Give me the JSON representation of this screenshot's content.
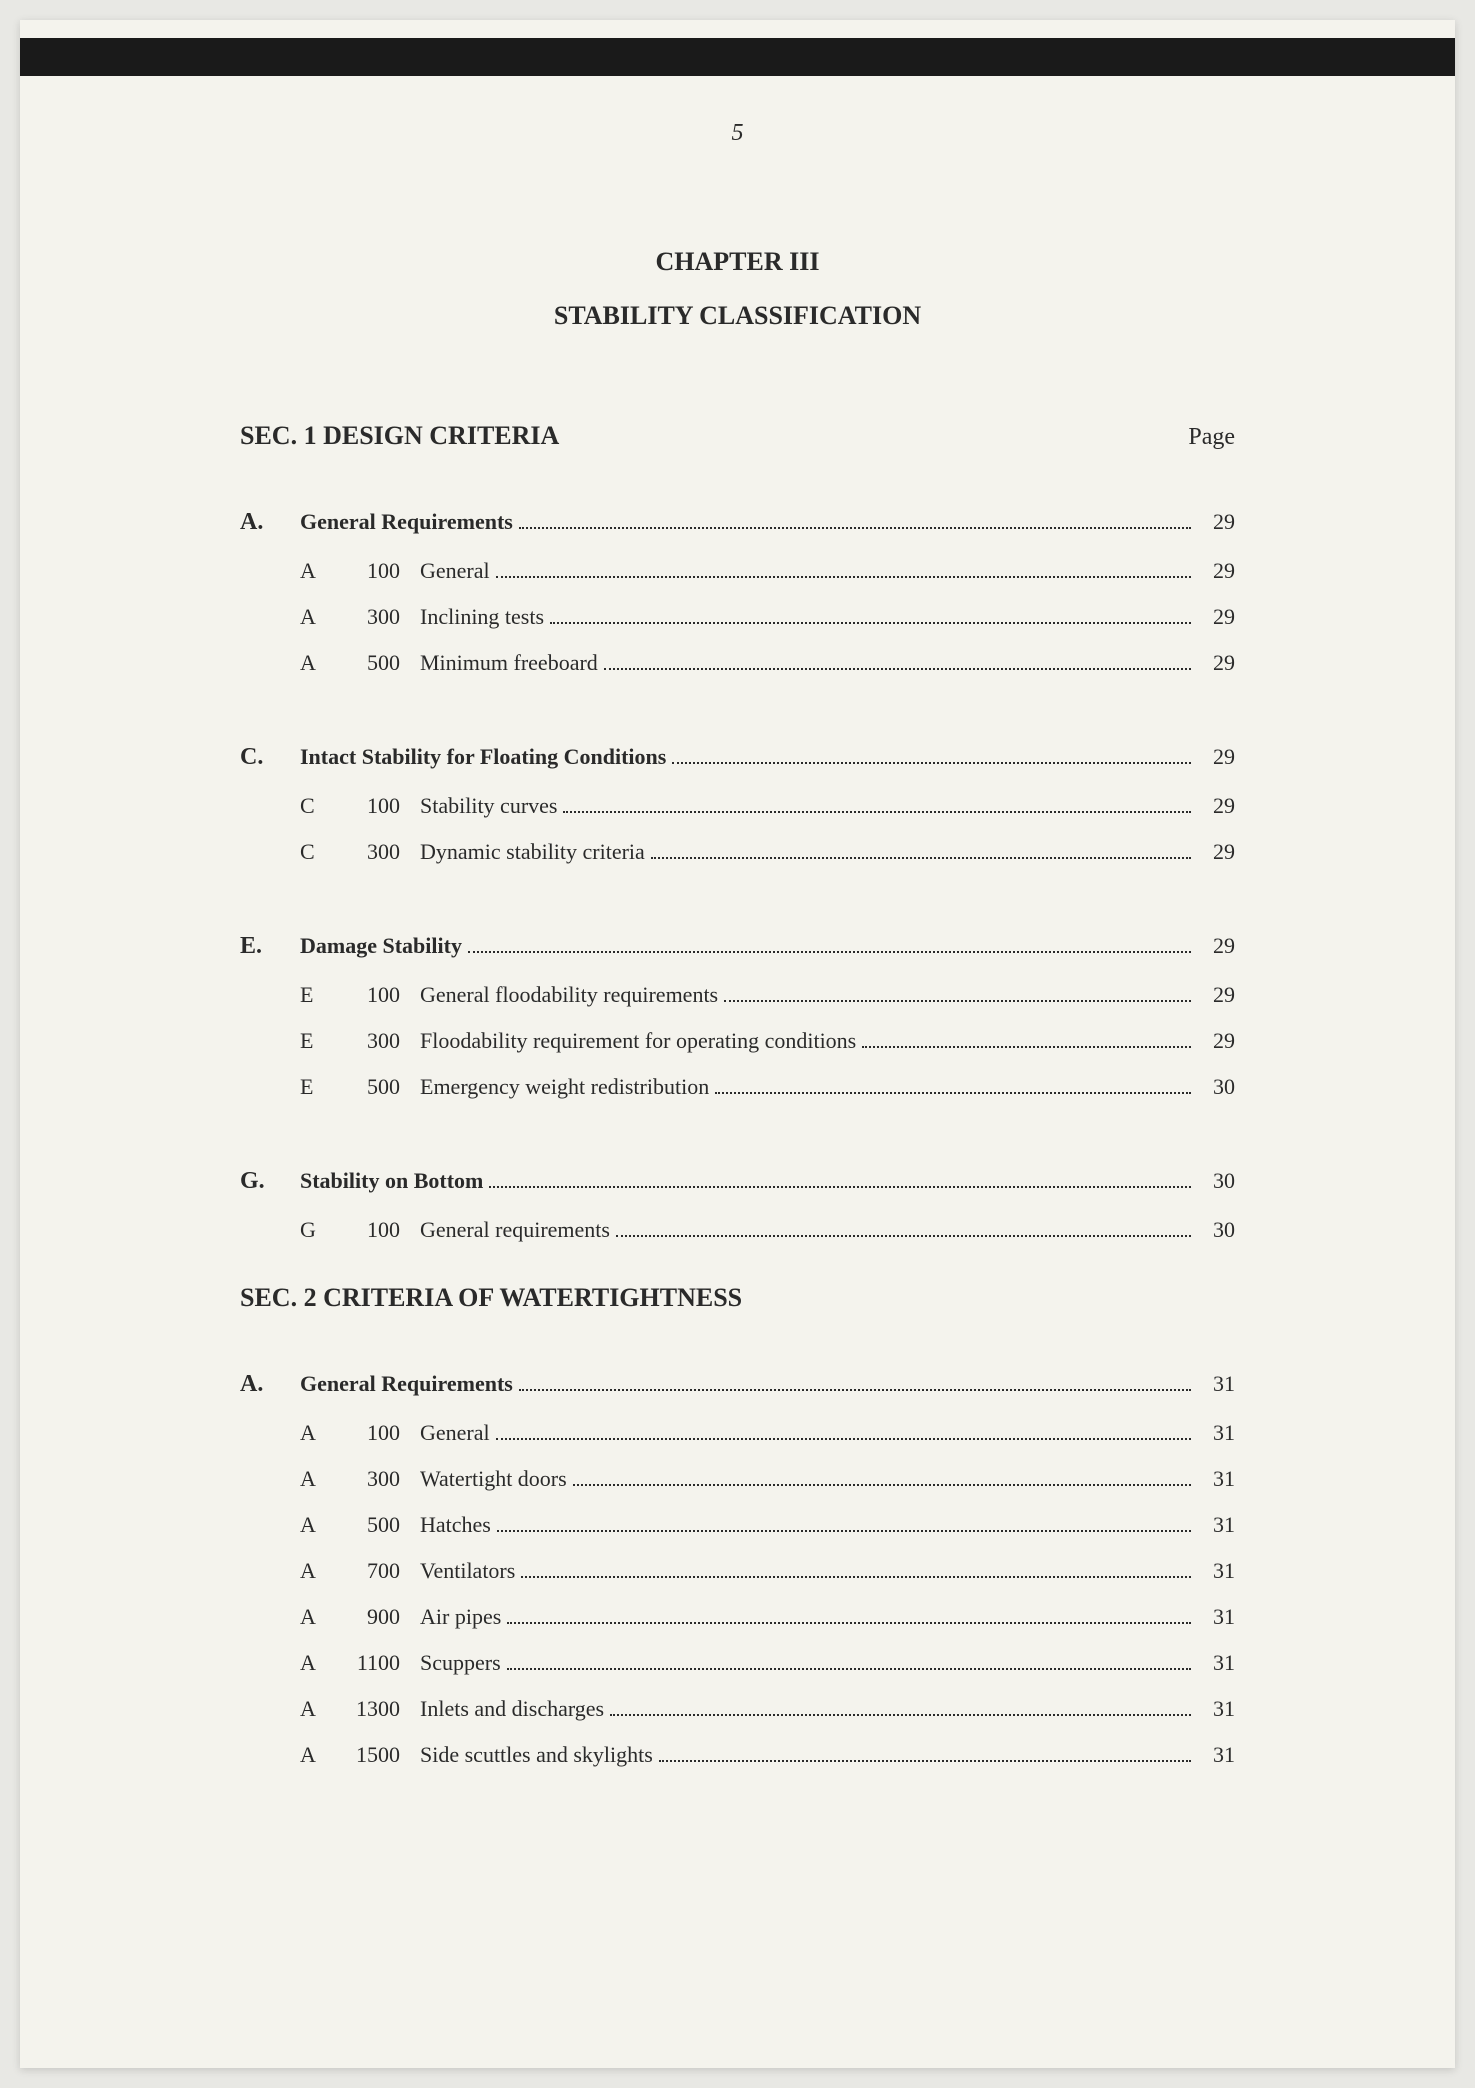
{
  "page_number": "5",
  "chapter_title": "CHAPTER III",
  "chapter_subtitle": "STABILITY CLASSIFICATION",
  "page_label": "Page",
  "colors": {
    "page_bg": "#f4f3ed",
    "top_border": "#1a1a1a",
    "text": "#2a2a2a"
  },
  "fontsize": {
    "page_number": 24,
    "titles": 26,
    "body": 22
  },
  "sections": [
    {
      "title": "SEC. 1  DESIGN CRITERIA",
      "show_page_label": true,
      "groups": [
        {
          "letter": "A.",
          "title": "General Requirements",
          "page": "29",
          "items": [
            {
              "letter": "A",
              "num": "100",
              "title": "General",
              "page": "29"
            },
            {
              "letter": "A",
              "num": "300",
              "title": "Inclining tests",
              "page": "29"
            },
            {
              "letter": "A",
              "num": "500",
              "title": "Minimum freeboard",
              "page": "29"
            }
          ]
        },
        {
          "letter": "C.",
          "title": "Intact Stability for Floating Conditions",
          "page": "29",
          "items": [
            {
              "letter": "C",
              "num": "100",
              "title": "Stability curves",
              "page": "29"
            },
            {
              "letter": "C",
              "num": "300",
              "title": "Dynamic stability criteria",
              "page": "29"
            }
          ]
        },
        {
          "letter": "E.",
          "title": "Damage Stability",
          "page": "29",
          "items": [
            {
              "letter": "E",
              "num": "100",
              "title": "General floodability requirements",
              "page": "29"
            },
            {
              "letter": "E",
              "num": "300",
              "title": "Floodability requirement for operating conditions",
              "page": "29"
            },
            {
              "letter": "E",
              "num": "500",
              "title": "Emergency weight redistribution",
              "page": "30"
            }
          ]
        },
        {
          "letter": "G.",
          "title": "Stability on Bottom",
          "page": "30",
          "items": [
            {
              "letter": "G",
              "num": "100",
              "title": "General requirements",
              "page": "30"
            }
          ]
        }
      ]
    },
    {
      "title": "SEC. 2  CRITERIA OF WATERTIGHTNESS",
      "show_page_label": false,
      "groups": [
        {
          "letter": "A.",
          "title": "General Requirements",
          "page": "31",
          "items": [
            {
              "letter": "A",
              "num": "100",
              "title": "General",
              "page": "31"
            },
            {
              "letter": "A",
              "num": "300",
              "title": "Watertight doors",
              "page": "31"
            },
            {
              "letter": "A",
              "num": "500",
              "title": "Hatches",
              "page": "31"
            },
            {
              "letter": "A",
              "num": "700",
              "title": "Ventilators",
              "page": "31"
            },
            {
              "letter": "A",
              "num": "900",
              "title": "Air pipes",
              "page": "31"
            },
            {
              "letter": "A",
              "num": "1100",
              "title": "Scuppers",
              "page": "31"
            },
            {
              "letter": "A",
              "num": "1300",
              "title": "Inlets and discharges",
              "page": "31"
            },
            {
              "letter": "A",
              "num": "1500",
              "title": "Side scuttles and skylights",
              "page": "31"
            }
          ]
        }
      ]
    }
  ]
}
